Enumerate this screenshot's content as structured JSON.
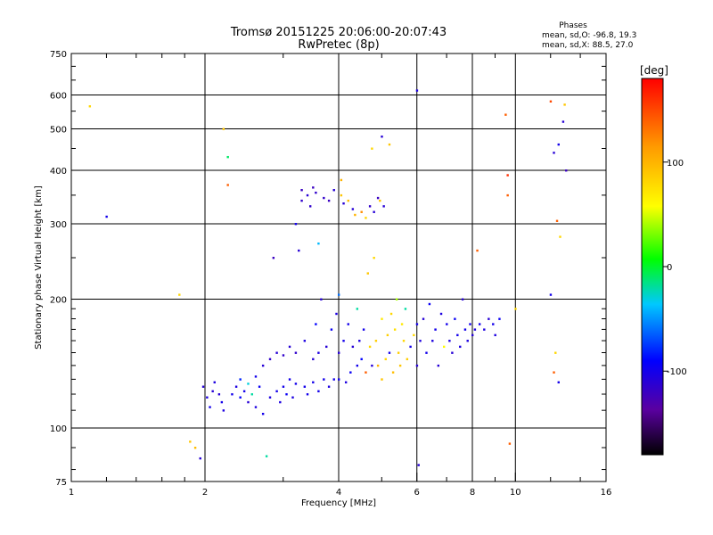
{
  "header": {
    "title": "Tromsø 20151225 20:06:00-20:07:43",
    "subtitle": "RwPretec (8p)",
    "phase_heading": "Phases",
    "phase_line1": "mean, sd,O: -96.8, 19.3",
    "phase_line2": "mean, sd,X:  88.5, 27.0"
  },
  "colorbar": {
    "unit_label": "[deg]",
    "range": [
      -180,
      180
    ],
    "ticks": [
      {
        "value": 100,
        "label": "100"
      },
      {
        "value": 0,
        "label": "0"
      },
      {
        "value": -100,
        "label": "-100"
      }
    ]
  },
  "chart_data": {
    "type": "scatter",
    "xlabel": "Frequency [MHz]",
    "ylabel": "Stationary phase Virtual Height [km]",
    "x_scale": "log",
    "y_scale": "log",
    "xlim": [
      1,
      16
    ],
    "ylim": [
      75,
      750
    ],
    "grid": true,
    "x_ticks": [
      {
        "value": 1,
        "label": "1"
      },
      {
        "value": 2,
        "label": "2"
      },
      {
        "value": 4,
        "label": "4"
      },
      {
        "value": 6,
        "label": "6"
      },
      {
        "value": 8,
        "label": "8"
      },
      {
        "value": 10,
        "label": "10"
      },
      {
        "value": 16,
        "label": "16"
      }
    ],
    "y_ticks": [
      {
        "value": 75,
        "label": "75"
      },
      {
        "value": 100,
        "label": "100"
      },
      {
        "value": 200,
        "label": "200"
      },
      {
        "value": 300,
        "label": "300"
      },
      {
        "value": 400,
        "label": "400"
      },
      {
        "value": 500,
        "label": "500"
      },
      {
        "value": 600,
        "label": "600"
      },
      {
        "value": 750,
        "label": "750"
      }
    ],
    "x_grid": [
      2,
      4,
      6,
      8,
      10
    ],
    "y_grid": [
      100,
      200,
      300,
      400,
      500,
      600
    ],
    "points": [
      [
        1.1,
        565,
        80
      ],
      [
        1.2,
        312,
        -100
      ],
      [
        1.75,
        205,
        80
      ],
      [
        1.85,
        93,
        90
      ],
      [
        1.9,
        90,
        95
      ],
      [
        1.95,
        85,
        -110
      ],
      [
        1.98,
        125,
        -110
      ],
      [
        2.02,
        118,
        -105
      ],
      [
        2.05,
        112,
        -100
      ],
      [
        2.08,
        122,
        -110
      ],
      [
        2.1,
        128,
        -105
      ],
      [
        2.15,
        120,
        -110
      ],
      [
        2.18,
        115,
        -100
      ],
      [
        2.2,
        110,
        -105
      ],
      [
        2.2,
        500,
        90
      ],
      [
        2.25,
        430,
        -10
      ],
      [
        2.25,
        370,
        140
      ],
      [
        2.3,
        120,
        -100
      ],
      [
        2.35,
        125,
        -105
      ],
      [
        2.4,
        118,
        -90
      ],
      [
        2.4,
        130,
        -80
      ],
      [
        2.45,
        122,
        -100
      ],
      [
        2.5,
        115,
        -110
      ],
      [
        2.5,
        127,
        -30
      ],
      [
        2.55,
        120,
        -20
      ],
      [
        2.6,
        112,
        -105
      ],
      [
        2.6,
        132,
        -100
      ],
      [
        2.65,
        125,
        -95
      ],
      [
        2.7,
        108,
        -100
      ],
      [
        2.7,
        140,
        -110
      ],
      [
        2.75,
        86,
        -20
      ],
      [
        2.8,
        118,
        -105
      ],
      [
        2.8,
        145,
        -115
      ],
      [
        2.85,
        250,
        -120
      ],
      [
        2.9,
        122,
        -100
      ],
      [
        2.9,
        150,
        -110
      ],
      [
        2.95,
        115,
        -105
      ],
      [
        3.0,
        125,
        -100
      ],
      [
        3.0,
        148,
        -115
      ],
      [
        3.05,
        120,
        -95
      ],
      [
        3.1,
        130,
        -100
      ],
      [
        3.1,
        155,
        -110
      ],
      [
        3.15,
        118,
        -105
      ],
      [
        3.2,
        127,
        -100
      ],
      [
        3.2,
        150,
        -115
      ],
      [
        3.2,
        300,
        -100
      ],
      [
        3.25,
        260,
        -110
      ],
      [
        3.3,
        360,
        -120
      ],
      [
        3.3,
        340,
        -115
      ],
      [
        3.35,
        125,
        -100
      ],
      [
        3.35,
        160,
        -105
      ],
      [
        3.4,
        350,
        -110
      ],
      [
        3.4,
        120,
        -100
      ],
      [
        3.45,
        330,
        -115
      ],
      [
        3.5,
        128,
        -100
      ],
      [
        3.5,
        145,
        -110
      ],
      [
        3.5,
        365,
        -120
      ],
      [
        3.55,
        175,
        -90
      ],
      [
        3.55,
        355,
        -115
      ],
      [
        3.6,
        122,
        -100
      ],
      [
        3.6,
        150,
        -105
      ],
      [
        3.6,
        270,
        -40
      ],
      [
        3.65,
        200,
        -110
      ],
      [
        3.7,
        345,
        -115
      ],
      [
        3.7,
        130,
        -100
      ],
      [
        3.75,
        155,
        -110
      ],
      [
        3.8,
        125,
        -105
      ],
      [
        3.8,
        340,
        -120
      ],
      [
        3.85,
        170,
        -95
      ],
      [
        3.9,
        360,
        -110
      ],
      [
        3.9,
        130,
        -100
      ],
      [
        3.95,
        185,
        -105
      ],
      [
        4.0,
        130,
        -100
      ],
      [
        4.0,
        150,
        -110
      ],
      [
        4.0,
        205,
        -60
      ],
      [
        4.05,
        350,
        90
      ],
      [
        4.05,
        380,
        100
      ],
      [
        4.1,
        335,
        -110
      ],
      [
        4.1,
        160,
        -100
      ],
      [
        4.15,
        128,
        -105
      ],
      [
        4.2,
        340,
        95
      ],
      [
        4.2,
        175,
        -100
      ],
      [
        4.25,
        135,
        -95
      ],
      [
        4.3,
        155,
        -110
      ],
      [
        4.3,
        325,
        -110
      ],
      [
        4.35,
        315,
        100
      ],
      [
        4.4,
        140,
        -100
      ],
      [
        4.4,
        190,
        -20
      ],
      [
        4.45,
        160,
        -105
      ],
      [
        4.5,
        320,
        120
      ],
      [
        4.5,
        145,
        -90
      ],
      [
        4.55,
        170,
        -100
      ],
      [
        4.6,
        310,
        80
      ],
      [
        4.6,
        135,
        140
      ],
      [
        4.65,
        230,
        90
      ],
      [
        4.7,
        155,
        80
      ],
      [
        4.7,
        330,
        -115
      ],
      [
        4.75,
        450,
        80
      ],
      [
        4.75,
        140,
        -110
      ],
      [
        4.8,
        320,
        -110
      ],
      [
        4.8,
        250,
        80
      ],
      [
        4.85,
        160,
        85
      ],
      [
        4.9,
        345,
        -120
      ],
      [
        4.9,
        140,
        100
      ],
      [
        4.95,
        340,
        90
      ],
      [
        5.0,
        480,
        -110
      ],
      [
        5.0,
        180,
        70
      ],
      [
        5.0,
        130,
        90
      ],
      [
        5.05,
        330,
        -110
      ],
      [
        5.1,
        145,
        80
      ],
      [
        5.15,
        165,
        85
      ],
      [
        5.2,
        460,
        90
      ],
      [
        5.2,
        150,
        -100
      ],
      [
        5.25,
        185,
        80
      ],
      [
        5.3,
        135,
        95
      ],
      [
        5.35,
        170,
        75
      ],
      [
        5.4,
        200,
        40
      ],
      [
        5.45,
        150,
        85
      ],
      [
        5.5,
        140,
        90
      ],
      [
        5.55,
        175,
        70
      ],
      [
        5.6,
        160,
        80
      ],
      [
        5.65,
        190,
        -20
      ],
      [
        5.7,
        145,
        85
      ],
      [
        5.8,
        155,
        -100
      ],
      [
        5.9,
        165,
        80
      ],
      [
        6.0,
        615,
        -105
      ],
      [
        6.0,
        175,
        -100
      ],
      [
        6.0,
        140,
        -110
      ],
      [
        6.05,
        82,
        -110
      ],
      [
        6.1,
        160,
        -105
      ],
      [
        6.2,
        180,
        -110
      ],
      [
        6.3,
        150,
        -100
      ],
      [
        6.4,
        195,
        -95
      ],
      [
        6.5,
        160,
        -105
      ],
      [
        6.6,
        170,
        -100
      ],
      [
        6.7,
        140,
        -110
      ],
      [
        6.8,
        185,
        -105
      ],
      [
        6.9,
        155,
        60
      ],
      [
        7.0,
        175,
        -100
      ],
      [
        7.1,
        160,
        -105
      ],
      [
        7.2,
        150,
        -110
      ],
      [
        7.3,
        180,
        -95
      ],
      [
        7.4,
        165,
        -100
      ],
      [
        7.5,
        155,
        -105
      ],
      [
        7.6,
        200,
        -110
      ],
      [
        7.7,
        170,
        -100
      ],
      [
        7.8,
        160,
        -105
      ],
      [
        7.9,
        175,
        -100
      ],
      [
        8.0,
        165,
        -110
      ],
      [
        8.1,
        170,
        -105
      ],
      [
        8.2,
        260,
        140
      ],
      [
        8.3,
        175,
        -100
      ],
      [
        8.5,
        170,
        -105
      ],
      [
        8.7,
        180,
        -110
      ],
      [
        8.9,
        175,
        -100
      ],
      [
        9.0,
        165,
        -105
      ],
      [
        9.2,
        180,
        -95
      ],
      [
        9.5,
        540,
        140
      ],
      [
        9.6,
        390,
        160
      ],
      [
        9.6,
        350,
        140
      ],
      [
        9.7,
        92,
        140
      ],
      [
        10.0,
        190,
        80
      ],
      [
        12.0,
        580,
        150
      ],
      [
        12.2,
        440,
        -110
      ],
      [
        12.5,
        460,
        -100
      ],
      [
        12.8,
        520,
        -110
      ],
      [
        12.9,
        570,
        90
      ],
      [
        13.0,
        400,
        -120
      ],
      [
        12.4,
        305,
        140
      ],
      [
        12.6,
        280,
        80
      ],
      [
        12.0,
        205,
        -100
      ],
      [
        12.2,
        135,
        140
      ],
      [
        12.5,
        128,
        -100
      ],
      [
        12.3,
        150,
        80
      ]
    ]
  }
}
